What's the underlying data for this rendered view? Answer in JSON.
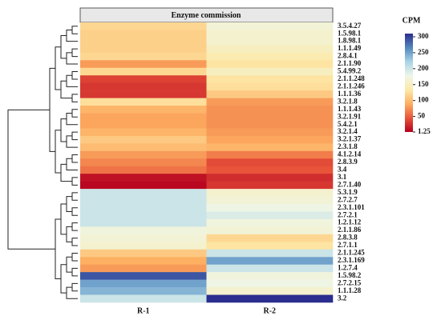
{
  "chart_data": {
    "type": "heatmap",
    "title": "Enzyme commission",
    "legend_title": "CPM",
    "columns": [
      "R-1",
      "R-2"
    ],
    "rows": [
      "3.5.4.27",
      "1.5.98.1",
      "1.8.98.1",
      "1.1.1.49",
      "2.8.4.1",
      "2.1.1.90",
      "5.4.99.2",
      "2.1.1.248",
      "2.1.1.246",
      "1.1.1.36",
      "3.2.1.8",
      "1.1.1.43",
      "3.2.1.91",
      "5.4.2.1",
      "3.2.1.4",
      "3.2.1.37",
      "2.3.1.8",
      "4.1.2.14",
      "2.8.3.9",
      "3.4",
      "3.1",
      "2.7.1.40",
      "5.3.1.9",
      "2.7.2.7",
      "2.3.1.101",
      "2.7.2.1",
      "1.2.1.12",
      "2.1.1.86",
      "2.8.3.8",
      "2.7.1.1",
      "2.1.1.245",
      "2.3.1.169",
      "1.2.7.4",
      "1.5.98.2",
      "2.7.2.15",
      "1.1.1.28",
      "3.2"
    ],
    "values": [
      [
        120,
        165
      ],
      [
        115,
        160
      ],
      [
        115,
        160
      ],
      [
        115,
        150
      ],
      [
        120,
        140
      ],
      [
        80,
        130
      ],
      [
        120,
        150
      ],
      [
        35,
        130
      ],
      [
        30,
        125
      ],
      [
        30,
        110
      ],
      [
        125,
        80
      ],
      [
        95,
        75
      ],
      [
        85,
        75
      ],
      [
        85,
        75
      ],
      [
        95,
        80
      ],
      [
        110,
        85
      ],
      [
        100,
        95
      ],
      [
        80,
        65
      ],
      [
        70,
        40
      ],
      [
        60,
        45
      ],
      [
        10,
        25
      ],
      [
        5,
        30
      ],
      [
        200,
        160
      ],
      [
        200,
        165
      ],
      [
        200,
        175
      ],
      [
        200,
        190
      ],
      [
        200,
        170
      ],
      [
        170,
        165
      ],
      [
        165,
        120
      ],
      [
        160,
        130
      ],
      [
        110,
        200
      ],
      [
        90,
        250
      ],
      [
        80,
        200
      ],
      [
        290,
        170
      ],
      [
        250,
        175
      ],
      [
        240,
        160
      ],
      [
        200,
        310
      ]
    ],
    "colors": [
      "#b5001f",
      "#e8553a",
      "#fdae61",
      "#fde9a8",
      "#eef6e8",
      "#a9d3e6",
      "#5287bd",
      "#2b2d8f"
    ],
    "clim": [
      1.25,
      310
    ],
    "cticks": [
      1.25,
      50,
      100,
      150,
      200,
      250,
      300
    ]
  }
}
